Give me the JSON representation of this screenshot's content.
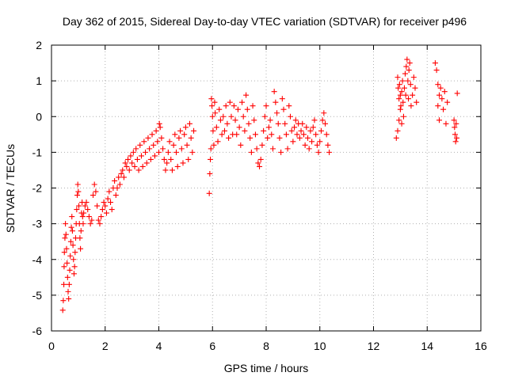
{
  "chart_data": {
    "type": "scatter",
    "title": "Day 362 of 2015, Sidereal Day-to-day VTEC variation (SDTVAR) for receiver p496",
    "xlabel": "GPS time / hours",
    "ylabel": "SDTVAR / TECUs",
    "xlim": [
      0,
      16
    ],
    "ylim": [
      -6,
      2
    ],
    "xticks": [
      "0",
      "2",
      "4",
      "6",
      "8",
      "10",
      "12",
      "14",
      "16"
    ],
    "yticks": [
      "2",
      "1",
      "0",
      "-1",
      "-2",
      "-3",
      "-4",
      "-5",
      "-6"
    ],
    "grid": true,
    "marker": "+",
    "color": "#ff0000",
    "series": [
      {
        "points": [
          [
            0.42,
            -5.42
          ],
          [
            0.44,
            -5.15
          ],
          [
            0.46,
            -4.7
          ],
          [
            0.47,
            -4.2
          ],
          [
            0.48,
            -3.8
          ],
          [
            0.5,
            -3.4
          ],
          [
            0.52,
            -3.0
          ],
          [
            0.54,
            -3.3
          ],
          [
            0.56,
            -3.7
          ],
          [
            0.58,
            -4.1
          ],
          [
            0.6,
            -4.5
          ],
          [
            0.62,
            -4.9
          ],
          [
            0.64,
            -5.1
          ],
          [
            0.66,
            -4.7
          ],
          [
            0.68,
            -4.3
          ],
          [
            0.7,
            -3.9
          ],
          [
            0.72,
            -3.5
          ],
          [
            0.74,
            -3.1
          ],
          [
            0.76,
            -2.8
          ],
          [
            0.78,
            -3.2
          ],
          [
            0.8,
            -3.6
          ],
          [
            0.82,
            -4.0
          ],
          [
            0.84,
            -4.4
          ],
          [
            0.86,
            -4.2
          ],
          [
            0.88,
            -3.8
          ],
          [
            0.9,
            -3.4
          ],
          [
            0.92,
            -3.0
          ],
          [
            0.94,
            -2.6
          ],
          [
            0.96,
            -2.2
          ],
          [
            0.98,
            -1.9
          ],
          [
            1.0,
            -2.1
          ],
          [
            1.02,
            -2.5
          ],
          [
            1.04,
            -3.0
          ],
          [
            1.06,
            -3.4
          ],
          [
            1.08,
            -3.7
          ],
          [
            1.1,
            -3.2
          ],
          [
            1.12,
            -2.7
          ],
          [
            1.14,
            -2.4
          ],
          [
            1.16,
            -2.8
          ],
          [
            1.18,
            -3.0
          ],
          [
            1.2,
            -2.7
          ],
          [
            1.25,
            -2.5
          ],
          [
            1.3,
            -2.4
          ],
          [
            1.35,
            -2.6
          ],
          [
            1.4,
            -2.8
          ],
          [
            1.45,
            -3.0
          ],
          [
            1.5,
            -2.9
          ],
          [
            1.55,
            -2.2
          ],
          [
            1.6,
            -1.9
          ],
          [
            1.65,
            -2.1
          ],
          [
            1.7,
            -2.5
          ],
          [
            1.75,
            -2.9
          ],
          [
            1.8,
            -3.0
          ],
          [
            1.85,
            -2.8
          ],
          [
            1.9,
            -2.6
          ],
          [
            1.95,
            -2.4
          ],
          [
            2.0,
            -2.5
          ],
          [
            2.05,
            -2.7
          ],
          [
            2.1,
            -2.3
          ],
          [
            2.15,
            -2.1
          ],
          [
            2.2,
            -2.4
          ],
          [
            2.25,
            -2.6
          ],
          [
            2.3,
            -2.0
          ],
          [
            2.35,
            -1.8
          ],
          [
            2.4,
            -2.2
          ],
          [
            2.45,
            -2.0
          ],
          [
            2.5,
            -1.7
          ],
          [
            2.55,
            -1.9
          ],
          [
            2.6,
            -1.6
          ],
          [
            2.65,
            -1.5
          ],
          [
            2.7,
            -1.7
          ],
          [
            2.75,
            -1.3
          ],
          [
            2.8,
            -1.4
          ],
          [
            2.85,
            -1.2
          ],
          [
            2.9,
            -1.5
          ],
          [
            2.95,
            -1.1
          ],
          [
            3.0,
            -1.3
          ],
          [
            3.05,
            -1.0
          ],
          [
            3.1,
            -1.4
          ],
          [
            3.15,
            -0.9
          ],
          [
            3.2,
            -1.2
          ],
          [
            3.25,
            -1.5
          ],
          [
            3.3,
            -0.8
          ],
          [
            3.35,
            -1.1
          ],
          [
            3.4,
            -1.4
          ],
          [
            3.45,
            -0.7
          ],
          [
            3.5,
            -1.0
          ],
          [
            3.55,
            -1.3
          ],
          [
            3.6,
            -0.6
          ],
          [
            3.65,
            -0.9
          ],
          [
            3.7,
            -1.2
          ],
          [
            3.75,
            -0.5
          ],
          [
            3.8,
            -0.8
          ],
          [
            3.85,
            -1.1
          ],
          [
            3.9,
            -0.4
          ],
          [
            3.95,
            -0.7
          ],
          [
            4.0,
            -1.0
          ],
          [
            4.02,
            -0.2
          ],
          [
            4.05,
            -0.3
          ],
          [
            4.1,
            -0.6
          ],
          [
            4.15,
            -0.9
          ],
          [
            4.2,
            -1.2
          ],
          [
            4.25,
            -1.5
          ],
          [
            4.3,
            -1.3
          ],
          [
            4.35,
            -1.0
          ],
          [
            4.4,
            -0.7
          ],
          [
            4.45,
            -1.2
          ],
          [
            4.5,
            -1.5
          ],
          [
            4.55,
            -0.8
          ],
          [
            4.6,
            -0.5
          ],
          [
            4.65,
            -1.0
          ],
          [
            4.7,
            -1.4
          ],
          [
            4.75,
            -0.6
          ],
          [
            4.8,
            -0.4
          ],
          [
            4.85,
            -0.9
          ],
          [
            4.9,
            -1.3
          ],
          [
            4.95,
            -0.5
          ],
          [
            5.0,
            -0.3
          ],
          [
            5.05,
            -0.8
          ],
          [
            5.1,
            -1.2
          ],
          [
            5.15,
            -0.2
          ],
          [
            5.2,
            -0.6
          ],
          [
            5.25,
            -1.0
          ],
          [
            5.3,
            -0.4
          ],
          [
            5.88,
            -2.15
          ],
          [
            5.9,
            -1.6
          ],
          [
            5.92,
            -1.2
          ],
          [
            5.94,
            -0.9
          ],
          [
            5.96,
            0.5
          ],
          [
            5.98,
            0.3
          ],
          [
            6.0,
            0.0
          ],
          [
            6.02,
            -0.4
          ],
          [
            6.05,
            -0.8
          ],
          [
            6.08,
            0.4
          ],
          [
            6.1,
            0.1
          ],
          [
            6.15,
            -0.3
          ],
          [
            6.2,
            -0.7
          ],
          [
            6.25,
            0.2
          ],
          [
            6.3,
            -0.1
          ],
          [
            6.35,
            -0.5
          ],
          [
            6.4,
            0.0
          ],
          [
            6.45,
            -0.4
          ],
          [
            6.5,
            0.3
          ],
          [
            6.55,
            -0.2
          ],
          [
            6.6,
            -0.6
          ],
          [
            6.65,
            0.4
          ],
          [
            6.7,
            0.0
          ],
          [
            6.75,
            -0.5
          ],
          [
            6.8,
            0.3
          ],
          [
            6.85,
            -0.1
          ],
          [
            6.9,
            -0.5
          ],
          [
            6.95,
            0.2
          ],
          [
            7.0,
            -0.3
          ],
          [
            7.05,
            -0.8
          ],
          [
            7.1,
            0.4
          ],
          [
            7.15,
            0.0
          ],
          [
            7.2,
            -0.4
          ],
          [
            7.25,
            0.6
          ],
          [
            7.3,
            0.2
          ],
          [
            7.35,
            -0.2
          ],
          [
            7.4,
            -0.6
          ],
          [
            7.45,
            -1.0
          ],
          [
            7.5,
            0.3
          ],
          [
            7.55,
            -0.1
          ],
          [
            7.6,
            -0.5
          ],
          [
            7.65,
            -0.9
          ],
          [
            7.7,
            -1.3
          ],
          [
            7.75,
            -1.4
          ],
          [
            7.8,
            -1.2
          ],
          [
            7.85,
            -0.8
          ],
          [
            7.9,
            -0.4
          ],
          [
            7.95,
            0.0
          ],
          [
            8.0,
            0.3
          ],
          [
            8.05,
            -0.6
          ],
          [
            8.1,
            -0.3
          ],
          [
            8.15,
            -0.1
          ],
          [
            8.2,
            -0.5
          ],
          [
            8.25,
            -0.9
          ],
          [
            8.3,
            0.7
          ],
          [
            8.35,
            0.4
          ],
          [
            8.4,
            0.1
          ],
          [
            8.45,
            -0.2
          ],
          [
            8.5,
            -0.6
          ],
          [
            8.55,
            -1.0
          ],
          [
            8.6,
            0.5
          ],
          [
            8.65,
            0.2
          ],
          [
            8.7,
            -0.2
          ],
          [
            8.75,
            -0.5
          ],
          [
            8.8,
            -0.9
          ],
          [
            8.85,
            0.3
          ],
          [
            8.9,
            0.0
          ],
          [
            8.95,
            -0.4
          ],
          [
            9.0,
            -0.7
          ],
          [
            9.05,
            -0.3
          ],
          [
            9.1,
            -0.1
          ],
          [
            9.15,
            -0.5
          ],
          [
            9.2,
            -0.2
          ],
          [
            9.25,
            -0.6
          ],
          [
            9.3,
            -0.4
          ],
          [
            9.35,
            -0.2
          ],
          [
            9.4,
            -0.5
          ],
          [
            9.45,
            -0.8
          ],
          [
            9.5,
            -0.3
          ],
          [
            9.55,
            -0.6
          ],
          [
            9.6,
            -0.9
          ],
          [
            9.65,
            -0.4
          ],
          [
            9.7,
            -0.7
          ],
          [
            9.75,
            -0.3
          ],
          [
            9.8,
            -0.1
          ],
          [
            9.85,
            -0.5
          ],
          [
            9.9,
            -0.8
          ],
          [
            9.95,
            -1.0
          ],
          [
            10.0,
            -0.7
          ],
          [
            10.05,
            -0.4
          ],
          [
            10.1,
            -0.1
          ],
          [
            10.15,
            0.1
          ],
          [
            10.2,
            -0.2
          ],
          [
            10.25,
            -0.5
          ],
          [
            10.3,
            -0.8
          ],
          [
            10.35,
            -1.0
          ],
          [
            12.9,
            1.1
          ],
          [
            12.92,
            0.8
          ],
          [
            12.95,
            0.5
          ],
          [
            12.97,
            0.9
          ],
          [
            13.0,
            0.6
          ],
          [
            13.02,
            0.3
          ],
          [
            13.05,
            0.7
          ],
          [
            13.08,
            1.0
          ],
          [
            13.1,
            0.4
          ],
          [
            13.12,
            0.0
          ],
          [
            13.15,
            0.8
          ],
          [
            13.18,
            1.2
          ],
          [
            13.2,
            0.6
          ],
          [
            13.22,
            1.4
          ],
          [
            13.25,
            1.6
          ],
          [
            13.28,
            1.0
          ],
          [
            13.3,
            0.5
          ],
          [
            13.32,
            1.3
          ],
          [
            13.35,
            1.5
          ],
          [
            13.38,
            0.9
          ],
          [
            13.4,
            0.3
          ],
          [
            13.45,
            0.6
          ],
          [
            13.5,
            1.1
          ],
          [
            13.55,
            0.8
          ],
          [
            13.6,
            0.4
          ],
          [
            12.95,
            -0.1
          ],
          [
            12.9,
            -0.4
          ],
          [
            12.85,
            -0.6
          ],
          [
            13.0,
            0.2
          ],
          [
            13.05,
            -0.2
          ],
          [
            14.3,
            1.5
          ],
          [
            14.35,
            1.3
          ],
          [
            14.4,
            0.9
          ],
          [
            14.45,
            0.6
          ],
          [
            14.4,
            0.3
          ],
          [
            14.45,
            -0.1
          ],
          [
            14.5,
            0.8
          ],
          [
            14.55,
            0.5
          ],
          [
            14.6,
            0.2
          ],
          [
            14.65,
            0.7
          ],
          [
            14.7,
            -0.2
          ],
          [
            14.75,
            0.4
          ],
          [
            15.0,
            -0.1
          ],
          [
            15.02,
            -0.3
          ],
          [
            15.04,
            -0.5
          ],
          [
            15.06,
            -0.7
          ],
          [
            15.08,
            -0.2
          ],
          [
            15.1,
            -0.6
          ],
          [
            15.12,
            0.65
          ]
        ]
      }
    ]
  }
}
